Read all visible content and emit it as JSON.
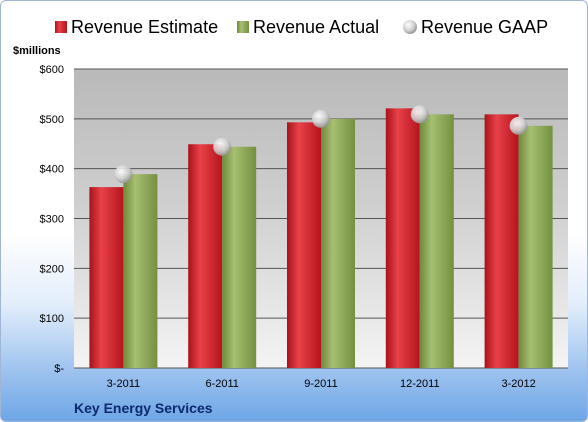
{
  "chart_data": {
    "type": "bar",
    "unit_label": "$millions",
    "company": "Key Energy Services",
    "categories": [
      "3-2011",
      "6-2011",
      "9-2011",
      "12-2011",
      "3-2012"
    ],
    "series": [
      {
        "name": "Revenue Estimate",
        "kind": "bar",
        "color": "#d0202a",
        "values": [
          363,
          449,
          493,
          521,
          509
        ]
      },
      {
        "name": "Revenue Actual",
        "kind": "bar",
        "color": "#8fa95a",
        "values": [
          389,
          444,
          500,
          509,
          486
        ]
      },
      {
        "name": "Revenue GAAP",
        "kind": "marker",
        "color": "#c8c8c8",
        "values": [
          389,
          444,
          500,
          509,
          486
        ]
      }
    ],
    "ylim": [
      0,
      600
    ],
    "yticks": [
      0,
      100,
      200,
      300,
      400,
      500,
      600
    ],
    "ytick_labels": [
      "$-",
      "$100",
      "$200",
      "$300",
      "$400",
      "$500",
      "$600"
    ],
    "grid": true,
    "legend_position": "top"
  }
}
